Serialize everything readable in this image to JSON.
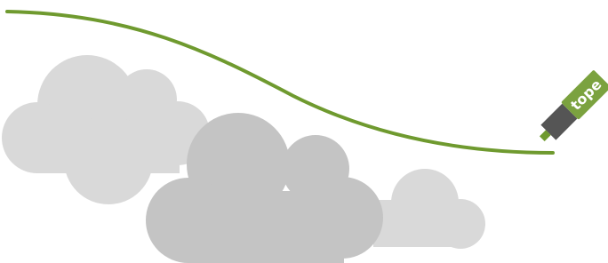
{
  "marker": {
    "label": "tope"
  }
}
